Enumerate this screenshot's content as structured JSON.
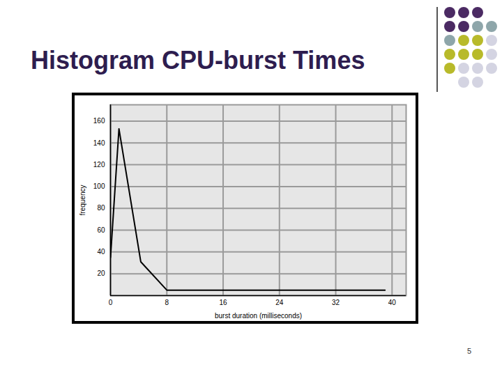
{
  "slide": {
    "page_number": "5"
  },
  "chart_data": {
    "type": "line",
    "title": "Histogram CPU-burst Times",
    "x_label": "burst duration (milliseconds)",
    "y_label": "frequency",
    "x": [
      0,
      1.2,
      4.3,
      8,
      39
    ],
    "values": [
      35,
      153,
      31,
      5,
      5
    ],
    "color": "#000000",
    "xlim": [
      0,
      42
    ],
    "ylim": [
      0,
      175
    ],
    "xticks": [
      0,
      8,
      16,
      24,
      32,
      40
    ],
    "yticks": [
      20,
      40,
      60,
      80,
      100,
      120,
      140,
      160
    ],
    "grid": true
  }
}
